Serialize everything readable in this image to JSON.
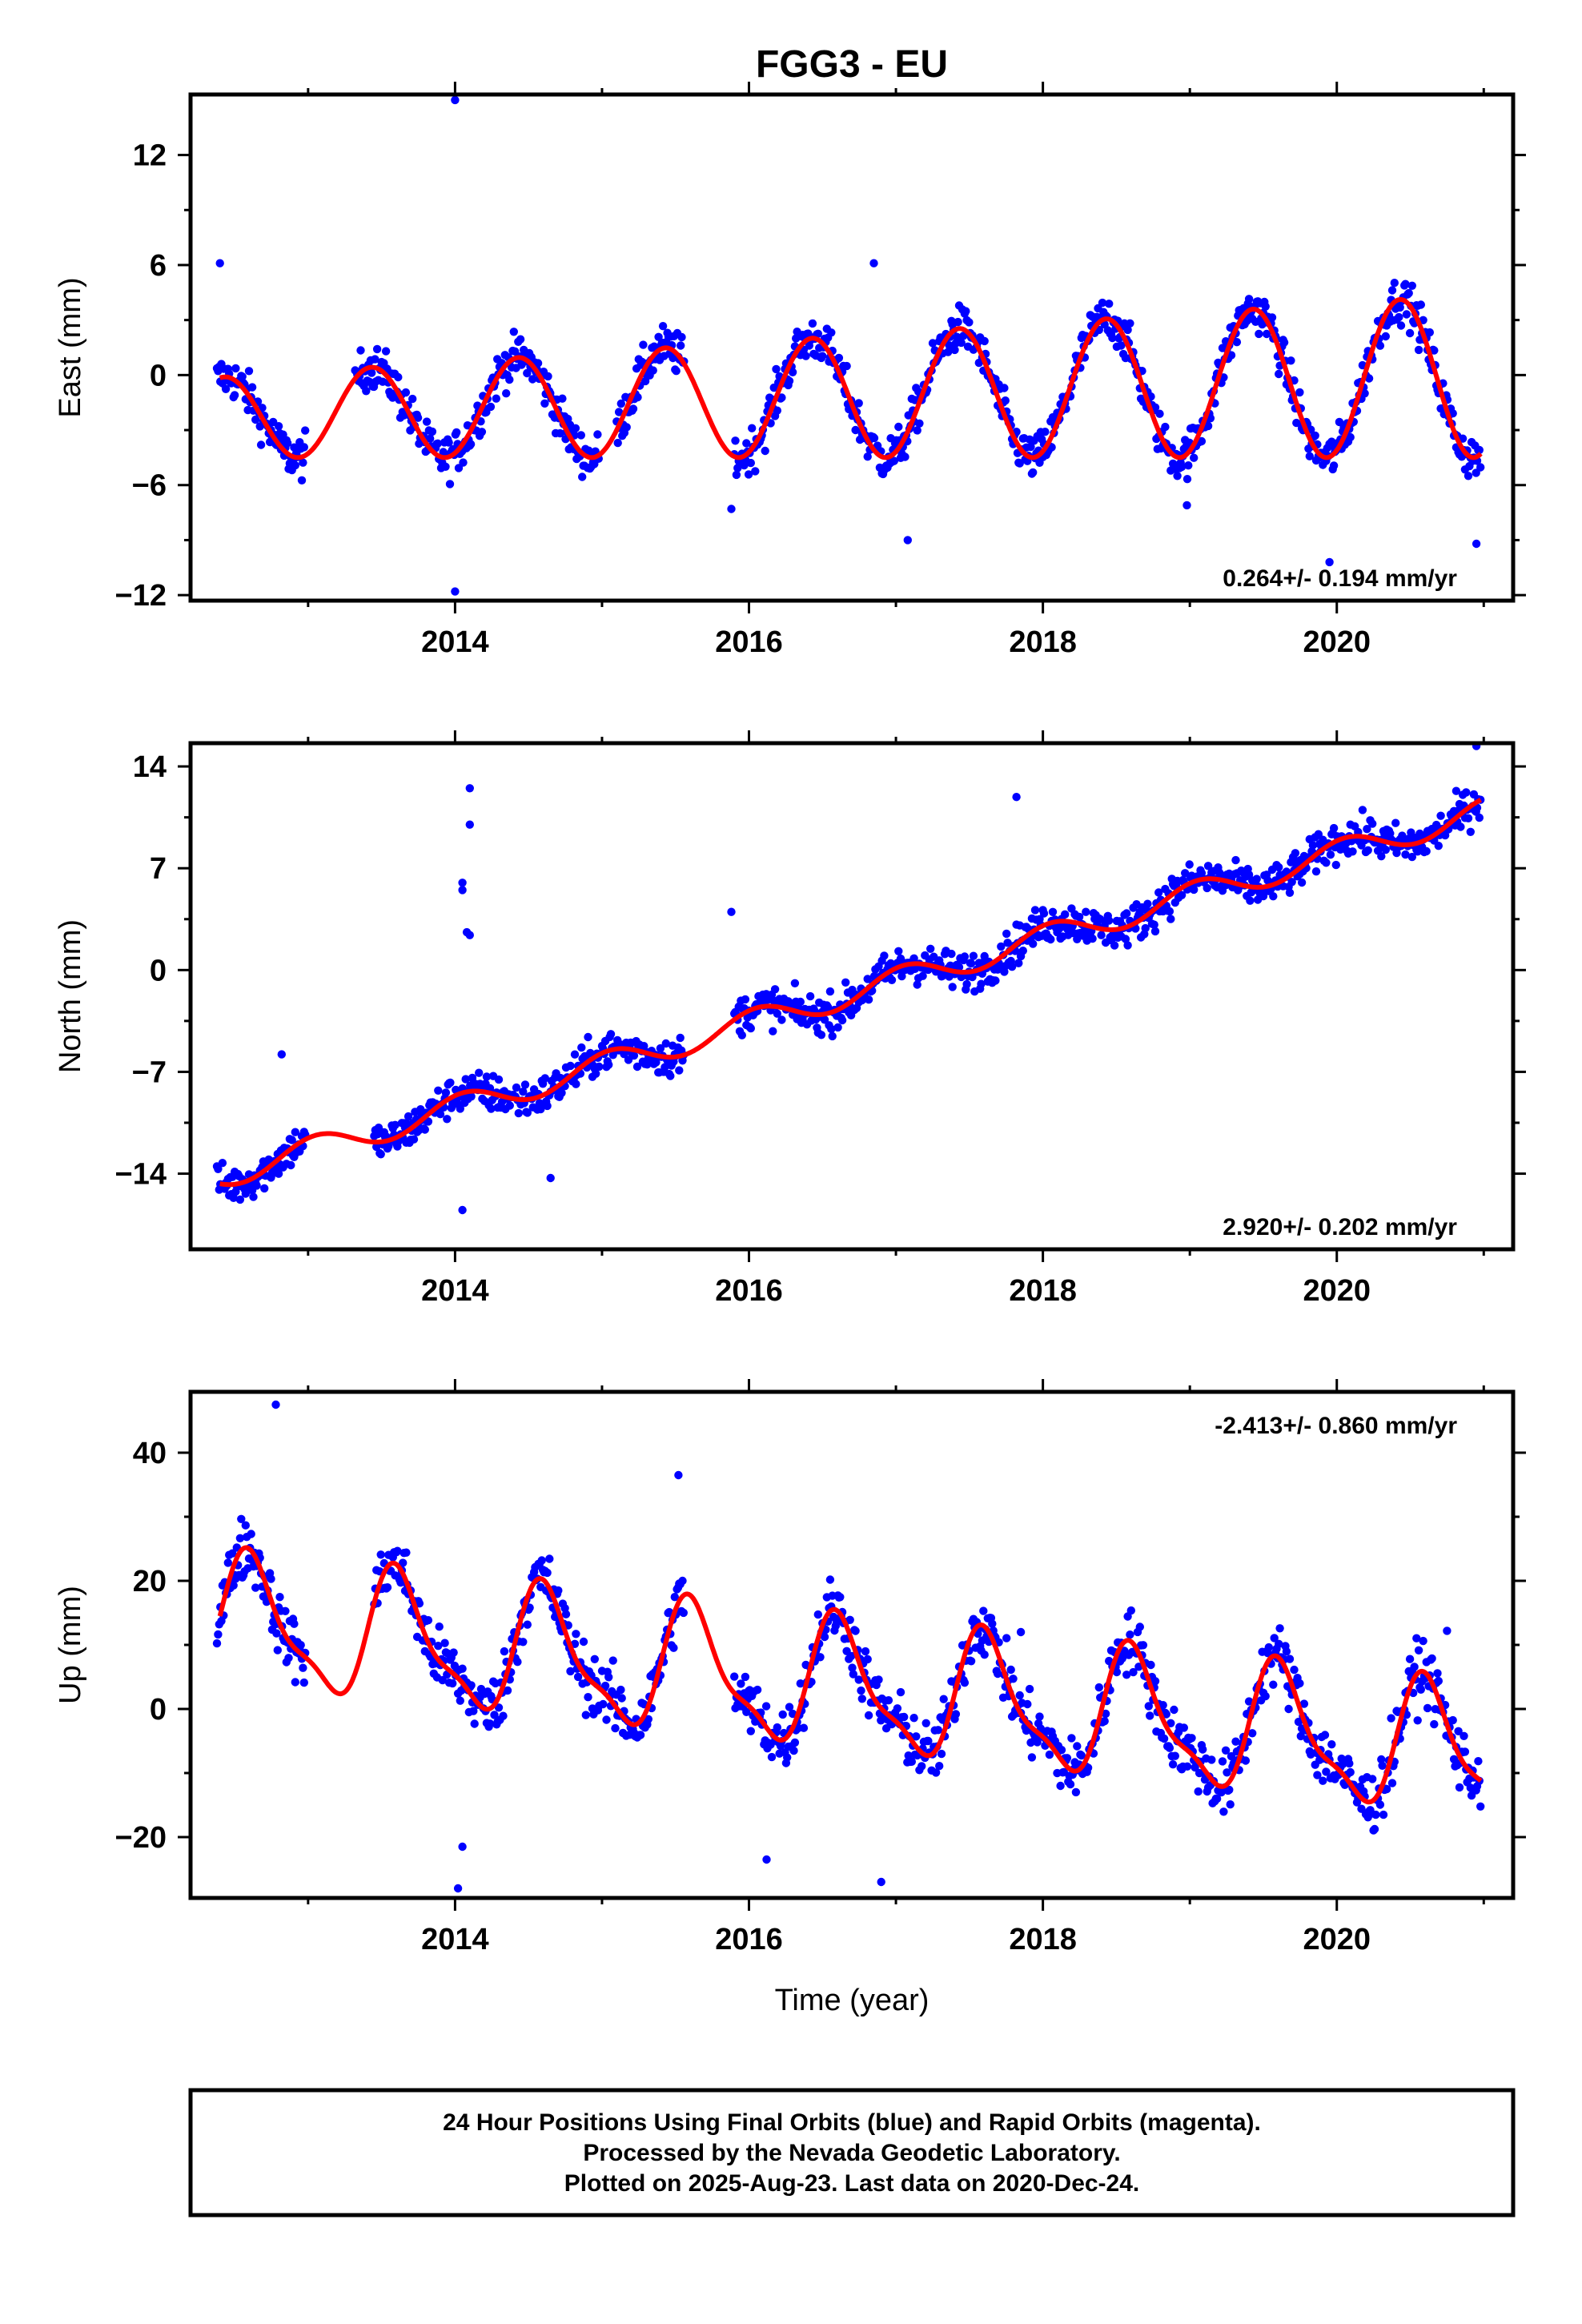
{
  "title": "FGG3 - EU",
  "xlabel": "Time (year)",
  "footer": {
    "line1": "24 Hour Positions Using Final Orbits (blue) and Rapid Orbits (magenta).",
    "line2": "Processed by the Nevada Geodetic Laboratory.",
    "line3": "Plotted on 2025-Aug-23. Last data on 2020-Dec-24."
  },
  "colors": {
    "final_orbits": "#0000ff",
    "model": "#ff0000",
    "frame": "#000000"
  },
  "chart_data": [
    {
      "type": "scatter",
      "ylabel": "East (mm)",
      "rate_text": "0.264+/- 0.194 mm/yr",
      "xlim": [
        2012.2,
        2021.2
      ],
      "ylim": [
        -12.3,
        15.3
      ],
      "xticks": [
        2014,
        2016,
        2018,
        2020
      ],
      "xtick_labels": [
        "2014",
        "2016",
        "2018",
        "2020"
      ],
      "yticks": [
        -12,
        -6,
        0,
        6,
        12
      ],
      "ytick_labels": [
        "−12",
        "−6",
        "0",
        "6",
        "12"
      ],
      "model": {
        "offset": -1.2,
        "rate": 0.264,
        "amp": 3.3,
        "amp_growth": 0.08,
        "phase_peak": 0.43,
        "amp2": 0.0,
        "phase2": 0.0,
        "t0": 2016.6,
        "t_start": 2012.4,
        "t_end": 2020.98
      },
      "data_spans": [
        [
          2012.38,
          2012.98
        ],
        [
          2013.32,
          2014.98
        ],
        [
          2015.1,
          2015.56
        ],
        [
          2015.9,
          2020.98
        ]
      ],
      "noise": 1.1,
      "outliers": [
        [
          2014.0,
          15.0
        ],
        [
          2014.0,
          -11.8
        ],
        [
          2015.88,
          -7.3
        ],
        [
          2017.08,
          -9.0
        ],
        [
          2018.98,
          -7.1
        ],
        [
          2019.95,
          -10.2
        ],
        [
          2020.95,
          -9.2
        ],
        [
          2016.85,
          6.1
        ],
        [
          2012.4,
          6.1
        ]
      ],
      "series": [
        {
          "name": "Final Orbits",
          "color": "#0000ff"
        },
        {
          "name": "Model",
          "color": "#ff0000"
        }
      ]
    },
    {
      "type": "scatter",
      "ylabel": "North (mm)",
      "rate_text": "2.920+/- 0.202 mm/yr",
      "xlim": [
        2012.2,
        2021.2
      ],
      "ylim": [
        -19.2,
        15.6
      ],
      "xticks": [
        2014,
        2016,
        2018,
        2020
      ],
      "xtick_labels": [
        "2014",
        "2016",
        "2018",
        "2020"
      ],
      "yticks": [
        -14,
        -7,
        0,
        7,
        14
      ],
      "ytick_labels": [
        "−14",
        "−7",
        "0",
        "7",
        "14"
      ],
      "model": {
        "offset": -1.9,
        "rate": 2.92,
        "amp": 0.9,
        "amp_growth": 0.0,
        "phase_peak": 0.05,
        "amp2": 0.0,
        "phase2": 0.0,
        "t0": 2016.6,
        "t_start": 2012.4,
        "t_end": 2020.98
      },
      "data_spans": [
        [
          2012.38,
          2012.98
        ],
        [
          2013.45,
          2014.98
        ],
        [
          2015.0,
          2015.56
        ],
        [
          2015.9,
          2020.98
        ]
      ],
      "noise": 1.2,
      "outliers": [
        [
          2014.1,
          12.5
        ],
        [
          2014.1,
          10.0
        ],
        [
          2014.05,
          6.0
        ],
        [
          2014.05,
          5.5
        ],
        [
          2014.08,
          2.6
        ],
        [
          2014.1,
          2.4
        ],
        [
          2014.05,
          -16.5
        ],
        [
          2012.82,
          -5.8
        ],
        [
          2015.88,
          4.0
        ],
        [
          2017.82,
          11.9
        ],
        [
          2020.95,
          15.4
        ],
        [
          2014.65,
          -14.3
        ]
      ],
      "series": [
        {
          "name": "Final Orbits",
          "color": "#0000ff"
        },
        {
          "name": "Model",
          "color": "#ff0000"
        }
      ]
    },
    {
      "type": "scatter",
      "ylabel": "Up (mm)",
      "rate_text": "-2.413+/- 0.860 mm/yr",
      "xlim": [
        2012.2,
        2021.2
      ],
      "ylim": [
        -29.5,
        49.5
      ],
      "xticks": [
        2014,
        2016,
        2018,
        2020
      ],
      "xtick_labels": [
        "2014",
        "2016",
        "2018",
        "2020"
      ],
      "yticks": [
        -20,
        0,
        20,
        40
      ],
      "ytick_labels": [
        "−20",
        "0",
        "20",
        "40"
      ],
      "model": {
        "offset": 3.5,
        "rate": -2.413,
        "amp": 9.5,
        "amp_growth": 0.0,
        "phase_peak": 0.62,
        "amp2": 3.0,
        "phase2": 0.55,
        "t0": 2016.6,
        "t_start": 2012.4,
        "t_end": 2020.98
      },
      "data_spans": [
        [
          2012.38,
          2012.98
        ],
        [
          2013.45,
          2014.98
        ],
        [
          2015.0,
          2015.56
        ],
        [
          2015.9,
          2020.98
        ]
      ],
      "noise": 4.5,
      "outliers": [
        [
          2012.78,
          47.5
        ],
        [
          2014.05,
          -21.5
        ],
        [
          2014.02,
          -28.0
        ],
        [
          2015.52,
          36.5
        ],
        [
          2016.12,
          -23.5
        ],
        [
          2017.85,
          12.0
        ],
        [
          2020.75,
          12.2
        ],
        [
          2016.9,
          -27.0
        ]
      ],
      "series": [
        {
          "name": "Final Orbits",
          "color": "#0000ff"
        },
        {
          "name": "Model",
          "color": "#ff0000"
        }
      ]
    }
  ]
}
